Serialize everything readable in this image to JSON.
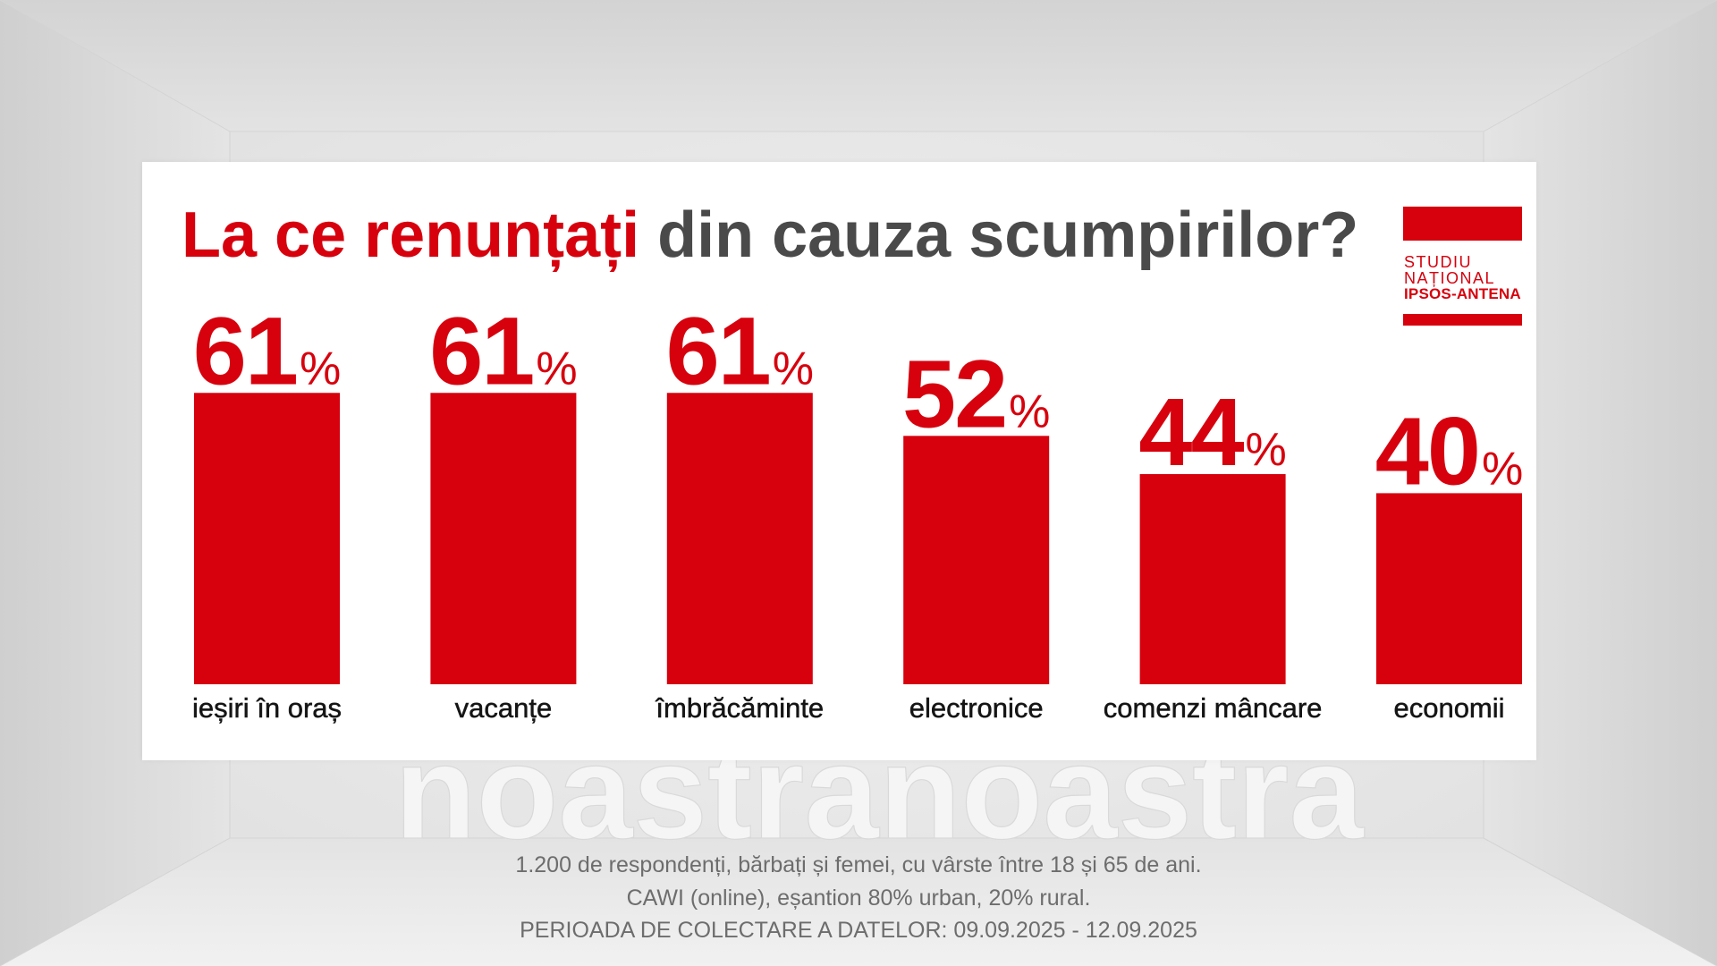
{
  "chart_data": {
    "type": "bar",
    "title": "La ce renunțați din cauza scumpirilor?",
    "title_highlight": "La ce renunțați",
    "categories": [
      "ieșiri în oraș",
      "vacanțe",
      "îmbrăcăminte",
      "electronice",
      "comenzi mâncare",
      "economii"
    ],
    "values": [
      61,
      61,
      61,
      52,
      44,
      40
    ],
    "unit": "%",
    "grid": false,
    "show_legend": false
  },
  "logo": {
    "lines": [
      "STUDIU",
      "NAȚIONAL",
      "IPSOS-ANTENA"
    ]
  },
  "footnote": [
    "1.200 de respondenți, bărbați și femei, cu vârste între 18 și 65 de ani.",
    "CAWI (online), eșantion 80% urban, 20% rural.",
    "PERIOADA DE COLECTARE A DATELOR: 09.09.2025 - 12.09.2025"
  ],
  "watermark": "noastra",
  "colors": {
    "accent": "#d7000d",
    "title_gray": "#4a4a4a",
    "label": "#151515",
    "footnote": "#6d6d6d",
    "panel": "#ffffff"
  }
}
